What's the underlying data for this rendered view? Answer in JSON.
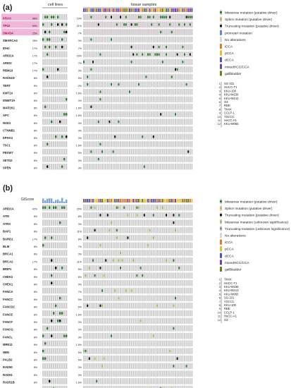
{
  "panel_a": {
    "label": "(a)",
    "cell_lines_header": "cell lines",
    "tissue_header": "tissue samples",
    "genes": [
      {
        "name": "KRAS",
        "cl": "58%",
        "ts": "19%",
        "highlight": true
      },
      {
        "name": "TP53",
        "cl": "50%",
        "ts": "21%",
        "highlight": true
      },
      {
        "name": "SMAD4",
        "cl": "25%",
        "ts": "7%",
        "highlight": true
      },
      {
        "name": "SMARCA4",
        "cl": "25%",
        "ts": "3%"
      },
      {
        "name": "IDH1",
        "cl": "17%",
        "ts": "7%"
      },
      {
        "name": "ARID1A",
        "cl": "17%",
        "ts": "20%"
      },
      {
        "name": "ARID2",
        "cl": "17%",
        "ts": "7%"
      },
      {
        "name": "RBM10",
        "cl": "17%",
        "ts": "3%"
      },
      {
        "name": "RAD51D",
        "cl": "8%",
        "ts": "5%"
      },
      {
        "name": "TERT",
        "cl": "8%",
        "ts": "2%"
      },
      {
        "name": "KMT2A",
        "cl": "8%",
        "ts": "1.6%"
      },
      {
        "name": "DNMT3A",
        "cl": "8%",
        "ts": "3%"
      },
      {
        "name": "MAP2K1",
        "cl": "8%",
        "ts": "1.6%"
      },
      {
        "name": "APC",
        "cl": "8%",
        "ts": "1.6%"
      },
      {
        "name": "NSD1",
        "cl": "8%",
        "ts": "3%"
      },
      {
        "name": "CTNNB1",
        "cl": "8%",
        "ts": "3%"
      },
      {
        "name": "EPHA3",
        "cl": "8%",
        "ts": "3%"
      },
      {
        "name": "TSC1",
        "cl": "8%",
        "ts": "1.6%"
      },
      {
        "name": "FBXW7",
        "cl": "8%",
        "ts": "5%"
      },
      {
        "name": "SETD2",
        "cl": "8%",
        "ts": "3%"
      },
      {
        "name": "SPEN",
        "cl": "8%",
        "ts": "3%"
      }
    ],
    "legend": [
      {
        "label": "Missense mutation (putative driver)",
        "color": "#2e7d32",
        "kind": "dot"
      },
      {
        "label": "Splice mutation (putative driver)",
        "color": "#f2a23a",
        "kind": "dot"
      },
      {
        "label": "Truncating mutation (putative driver)",
        "color": "#111111",
        "kind": "dot"
      },
      {
        "label": "promoter mutation",
        "color": "#5b8bd6",
        "kind": "box"
      },
      {
        "label": "No alterations",
        "color": "#d6d6d6",
        "kind": "box"
      },
      {
        "label": "iCCA",
        "color": "#e07b2e",
        "kind": "box"
      },
      {
        "label": "pCCA",
        "color": "#e6c02a",
        "kind": "box"
      },
      {
        "label": "dCCA",
        "color": "#4a55c2",
        "kind": "box"
      },
      {
        "label": "mixedHCC/CCA",
        "color": "#7a3fa0",
        "kind": "box"
      },
      {
        "label": "gallbladder",
        "color": "#6b7d1e",
        "kind": "box"
      }
    ],
    "cell_line_list": [
      "SG-231",
      "HUCC-T1",
      "KKU-100",
      "KKU-M156",
      "KKU-M213",
      "OZ",
      "RBE",
      "TKKK",
      "CCLP-1",
      "YSCCC",
      "HuCC-A1",
      "KKU-M055"
    ]
  },
  "panel_b": {
    "label": "(b)",
    "gis_label": "GIScore",
    "genes": [
      {
        "name": "ARID1A",
        "cl": "42%",
        "ts": "20%"
      },
      {
        "name": "ATM",
        "cl": "8%",
        "ts": "8%"
      },
      {
        "name": "ATRX",
        "cl": "8%",
        "ts": "3%"
      },
      {
        "name": "BAP1",
        "cl": "8%",
        "ts": "11%"
      },
      {
        "name": "BARD1",
        "cl": "17%",
        "ts": "8%"
      },
      {
        "name": "BLM",
        "cl": "8%",
        "ts": "7%"
      },
      {
        "name": "BRCA1",
        "cl": "8%",
        "ts": "3%"
      },
      {
        "name": "BRCA2",
        "cl": "17%",
        "ts": "11%"
      },
      {
        "name": "BRIP1",
        "cl": "8%",
        "ts": "5%"
      },
      {
        "name": "CHEK2",
        "cl": "8%",
        "ts": "8%"
      },
      {
        "name": "CHEK1",
        "cl": "8%",
        "ts": "3%"
      },
      {
        "name": "FANCA",
        "cl": "8%",
        "ts": "7%"
      },
      {
        "name": "FANCC",
        "cl": "8%",
        "ts": "5%"
      },
      {
        "name": "FANCD2",
        "cl": "8%",
        "ts": "5%"
      },
      {
        "name": "FANCE",
        "cl": "8%",
        "ts": "1.6%"
      },
      {
        "name": "FANCF",
        "cl": "8%",
        "ts": "3%"
      },
      {
        "name": "FANCG",
        "cl": "8%",
        "ts": "3%"
      },
      {
        "name": "FANCL",
        "cl": "8%",
        "ts": "3%"
      },
      {
        "name": "MRE11",
        "cl": "8%",
        "ts": "1.6%"
      },
      {
        "name": "NBN",
        "cl": "8%",
        "ts": "5%"
      },
      {
        "name": "PALB2",
        "cl": "8%",
        "ts": "5%"
      },
      {
        "name": "RAD50",
        "cl": "8%",
        "ts": "3%"
      },
      {
        "name": "RAD51",
        "cl": "8%",
        "ts": "3%"
      },
      {
        "name": "RAD51B",
        "cl": "8%",
        "ts": "1.6%"
      },
      {
        "name": "RAD51D",
        "cl": "8%",
        "ts": "5%"
      }
    ],
    "legend": [
      {
        "label": "Missense mutation (putative driver)",
        "color": "#2e7d32",
        "kind": "dot"
      },
      {
        "label": "Splice mutation (putative driver)",
        "color": "#f2a23a",
        "kind": "dot"
      },
      {
        "label": "Truncating mutation (putative driver)",
        "color": "#111111",
        "kind": "dot"
      },
      {
        "label": "Missense mutation (unknown significance)",
        "color": "#9fc04a",
        "kind": "dot"
      },
      {
        "label": "Truncating mutation (unknown significance)",
        "color": "#8a8a8a",
        "kind": "dot"
      },
      {
        "label": "No alterations",
        "color": "#d6d6d6",
        "kind": "box"
      },
      {
        "label": "iCCA",
        "color": "#e07b2e",
        "kind": "box"
      },
      {
        "label": "pCCA",
        "color": "#e6c02a",
        "kind": "box"
      },
      {
        "label": "dCCA",
        "color": "#4a55c2",
        "kind": "box"
      },
      {
        "label": "mixedHCC/CCA",
        "color": "#7a3fa0",
        "kind": "box"
      },
      {
        "label": "gallbladder",
        "color": "#6b7d1e",
        "kind": "box"
      }
    ],
    "cell_line_list": [
      "TKKK",
      "HUCC-T1",
      "KKU-M156",
      "KKU-M213",
      "KKU-M055",
      "SG-231",
      "YSCCC",
      "KKU-100",
      "RBE",
      "CCLP-1",
      "HuCC-A1",
      "OZ"
    ]
  },
  "colors": {
    "cell": "#cfcfcf",
    "highlight": "#f2b6d8",
    "missense": "#2e7d32",
    "truncating": "#111111",
    "vus": "#9fc04a"
  }
}
